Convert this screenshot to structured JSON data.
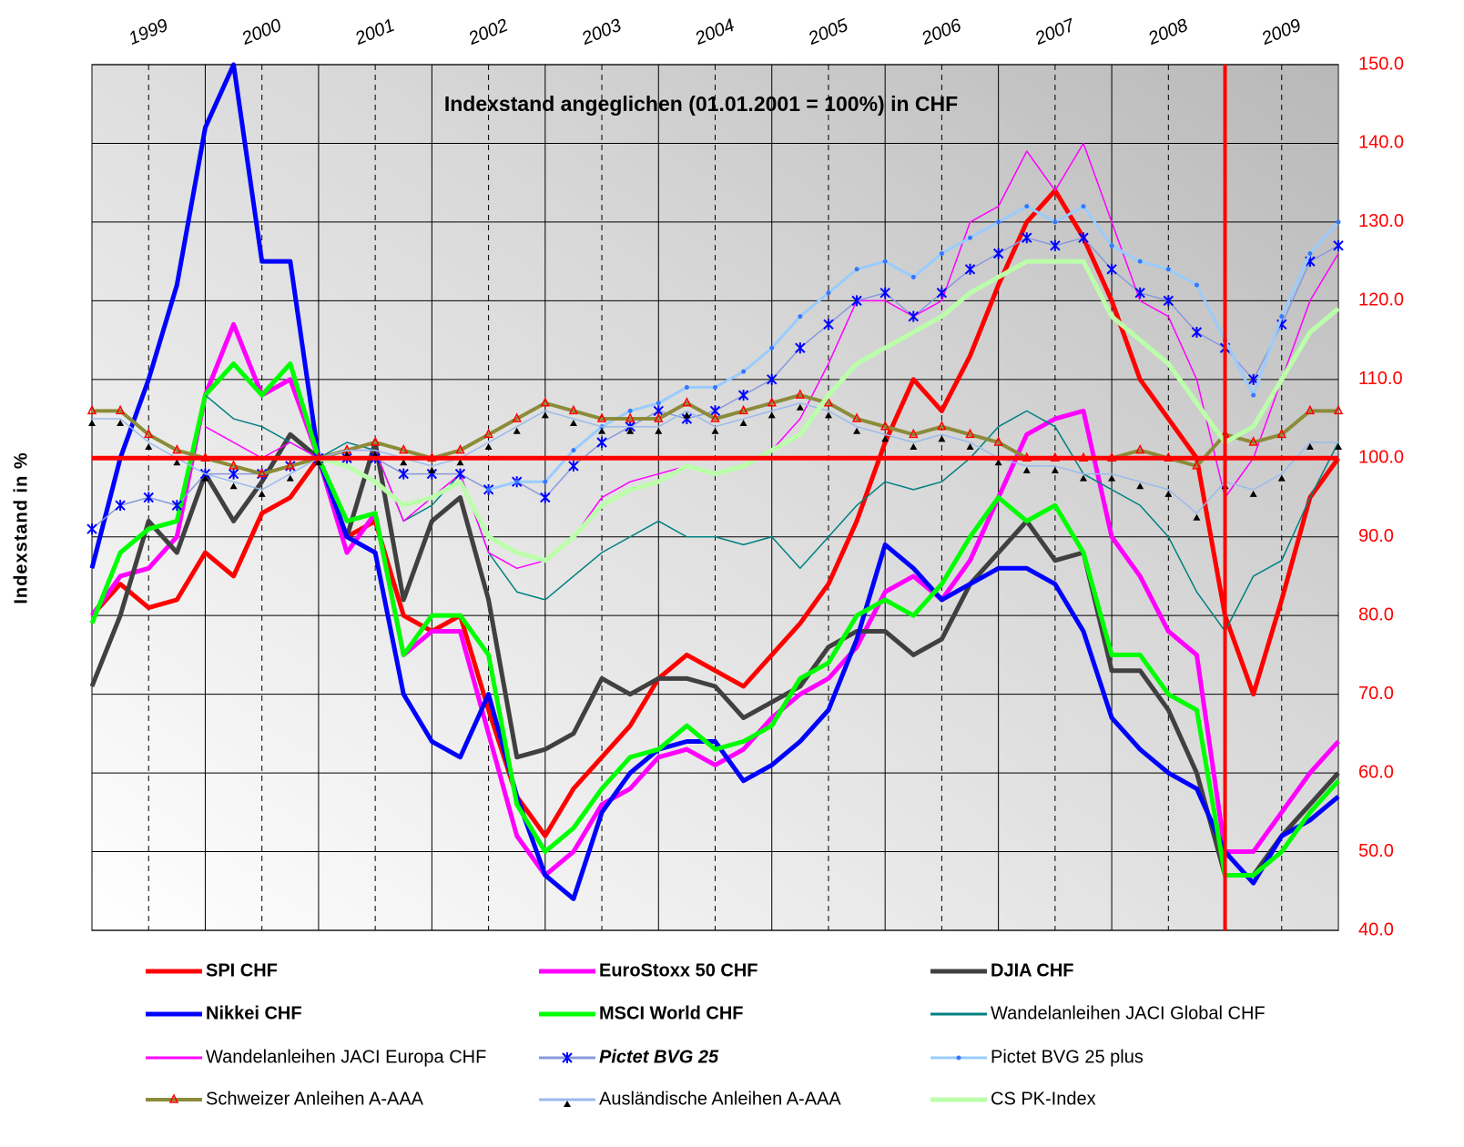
{
  "chart_data": {
    "type": "line",
    "title": "Indexstand angeglichen (01.01.2001 = 100%) in CHF",
    "y_label": "Indexstand in %",
    "x": [
      1999,
      1999.25,
      1999.5,
      1999.75,
      2000,
      2000.25,
      2000.5,
      2000.75,
      2001,
      2001.25,
      2001.5,
      2001.75,
      2002,
      2002.25,
      2002.5,
      2002.75,
      2003,
      2003.25,
      2003.5,
      2003.75,
      2004,
      2004.25,
      2004.5,
      2004.75,
      2005,
      2005.25,
      2005.5,
      2005.75,
      2006,
      2006.25,
      2006.5,
      2006.75,
      2007,
      2007.25,
      2007.5,
      2007.75,
      2008,
      2008.25,
      2008.5,
      2008.75,
      2009,
      2009.25,
      2009.5,
      2009.75,
      2010
    ],
    "xlim": [
      1999,
      2010
    ],
    "xticks": [
      {
        "value": 1999.5,
        "label": "1999"
      },
      {
        "value": 2000.5,
        "label": "2000"
      },
      {
        "value": 2001.5,
        "label": "2001"
      },
      {
        "value": 2002.5,
        "label": "2002"
      },
      {
        "value": 2003.5,
        "label": "2003"
      },
      {
        "value": 2004.5,
        "label": "2004"
      },
      {
        "value": 2005.5,
        "label": "2005"
      },
      {
        "value": 2006.5,
        "label": "2006"
      },
      {
        "value": 2007.5,
        "label": "2007"
      },
      {
        "value": 2008.5,
        "label": "2008"
      },
      {
        "value": 2009.5,
        "label": "2009"
      }
    ],
    "xgrid": [
      2000,
      2001,
      2002,
      2003,
      2004,
      2005,
      2006,
      2007,
      2008,
      2009
    ],
    "ylim": [
      40,
      150
    ],
    "yticks": [
      {
        "value": 40,
        "label": "40.0"
      },
      {
        "value": 50,
        "label": "50.0"
      },
      {
        "value": 60,
        "label": "60.0"
      },
      {
        "value": 70,
        "label": "70.0"
      },
      {
        "value": 80,
        "label": "80.0"
      },
      {
        "value": 90,
        "label": "90.0"
      },
      {
        "value": 100,
        "label": "100.0"
      },
      {
        "value": 110,
        "label": "110.0"
      },
      {
        "value": 120,
        "label": "120.0"
      },
      {
        "value": 130,
        "label": "130.0"
      },
      {
        "value": 140,
        "label": "140.0"
      },
      {
        "value": 150,
        "label": "150.0"
      }
    ],
    "grid": true,
    "hline": 100,
    "vline": 2009,
    "reference_color": "#ff0000",
    "series": [
      {
        "name": "SPI CHF",
        "color": "#ff0000",
        "width": 5,
        "bold": true,
        "values": [
          80,
          84,
          81,
          82,
          88,
          85,
          93,
          95,
          100,
          90,
          92,
          80,
          78,
          80,
          68,
          57,
          52,
          58,
          62,
          66,
          72,
          75,
          73,
          71,
          75,
          79,
          84,
          92,
          102,
          110,
          106,
          113,
          122,
          130,
          134,
          128,
          120,
          110,
          105,
          100,
          80,
          70,
          82,
          95,
          100
        ]
      },
      {
        "name": "EuroStoxx 50 CHF",
        "color": "#ff00ff",
        "width": 5,
        "bold": true,
        "values": [
          80,
          85,
          86,
          90,
          108,
          117,
          108,
          110,
          100,
          88,
          93,
          75,
          78,
          78,
          65,
          52,
          47,
          50,
          56,
          58,
          62,
          63,
          61,
          63,
          67,
          70,
          72,
          76,
          83,
          85,
          82,
          87,
          95,
          103,
          105,
          106,
          90,
          85,
          78,
          75,
          50,
          50,
          55,
          60,
          64
        ]
      },
      {
        "name": "DJIA CHF",
        "color": "#404040",
        "width": 5,
        "bold": true,
        "values": [
          71,
          80,
          92,
          88,
          98,
          92,
          97,
          103,
          100,
          90,
          102,
          82,
          92,
          95,
          82,
          62,
          63,
          65,
          72,
          70,
          72,
          72,
          71,
          67,
          69,
          71,
          76,
          78,
          78,
          75,
          77,
          84,
          88,
          92,
          87,
          88,
          73,
          73,
          68,
          60,
          47,
          47,
          52,
          56,
          60
        ]
      },
      {
        "name": "Nikkei CHF",
        "color": "#0000ff",
        "width": 5,
        "bold": true,
        "values": [
          86,
          100,
          110,
          122,
          142,
          150,
          125,
          125,
          100,
          90,
          88,
          70,
          64,
          62,
          70,
          57,
          47,
          44,
          55,
          60,
          63,
          64,
          64,
          59,
          61,
          64,
          68,
          77,
          89,
          86,
          82,
          84,
          86,
          86,
          84,
          78,
          67,
          63,
          60,
          58,
          50,
          46,
          52,
          54,
          57
        ]
      },
      {
        "name": "MSCI World CHF",
        "color": "#00ff00",
        "width": 5,
        "bold": true,
        "values": [
          79,
          88,
          91,
          92,
          108,
          112,
          108,
          112,
          100,
          92,
          93,
          75,
          80,
          80,
          75,
          56,
          50,
          53,
          58,
          62,
          63,
          66,
          63,
          64,
          66,
          72,
          74,
          80,
          82,
          80,
          84,
          90,
          95,
          92,
          94,
          88,
          75,
          75,
          70,
          68,
          47,
          47,
          50,
          55,
          59
        ]
      },
      {
        "name": "Wandelanleihen JACI Global CHF",
        "color": "#008080",
        "width": 1.5,
        "values": [
          null,
          null,
          null,
          null,
          108,
          105,
          104,
          102,
          100,
          102,
          101,
          92,
          94,
          98,
          88,
          83,
          82,
          85,
          88,
          90,
          92,
          90,
          90,
          89,
          90,
          86,
          90,
          94,
          97,
          96,
          97,
          100,
          104,
          106,
          104,
          98,
          96,
          94,
          90,
          83,
          78,
          85,
          87,
          95,
          102
        ]
      },
      {
        "name": "Wandelanleihen JACI  Europa CHF",
        "color": "#ff00ff",
        "width": 1.5,
        "values": [
          null,
          null,
          null,
          null,
          104,
          102,
          100,
          102,
          100,
          101,
          101,
          92,
          95,
          98,
          88,
          86,
          87,
          90,
          95,
          97,
          98,
          99,
          98,
          99,
          101,
          105,
          112,
          120,
          120,
          118,
          120,
          130,
          132,
          139,
          134,
          140,
          130,
          120,
          118,
          110,
          95,
          100,
          110,
          120,
          126
        ]
      },
      {
        "name": "Pictet BVG 25",
        "color": "#8899dd",
        "marker": "x",
        "marker_color": "#0000ff",
        "width": 1.5,
        "bold": true,
        "italic": true,
        "values": [
          91,
          94,
          95,
          94,
          98,
          98,
          98,
          99,
          100,
          100,
          100,
          98,
          98,
          98,
          96,
          97,
          95,
          99,
          102,
          104,
          106,
          105,
          106,
          108,
          110,
          114,
          117,
          120,
          121,
          118,
          121,
          124,
          126,
          128,
          127,
          128,
          124,
          121,
          120,
          116,
          114,
          110,
          117,
          125,
          127
        ]
      },
      {
        "name": "Pictet BVG 25 plus",
        "color": "#99ccff",
        "marker": "dot",
        "marker_color": "#3377ff",
        "width": 3,
        "values": [
          null,
          null,
          null,
          null,
          null,
          null,
          null,
          null,
          null,
          null,
          null,
          null,
          null,
          null,
          96,
          97,
          97,
          101,
          104,
          106,
          107,
          109,
          109,
          111,
          114,
          118,
          121,
          124,
          125,
          123,
          126,
          128,
          130,
          132,
          130,
          132,
          127,
          125,
          124,
          122,
          115,
          108,
          118,
          126,
          130
        ]
      },
      {
        "name": "Schweizer Anleihen A-AAA",
        "color": "#8b8b3a",
        "marker": "triangle",
        "marker_color": "#ff0000",
        "width": 4,
        "values": [
          106,
          106,
          103,
          101,
          100,
          99,
          98,
          99,
          100,
          101,
          102,
          101,
          100,
          101,
          103,
          105,
          107,
          106,
          105,
          105,
          105,
          107,
          105,
          106,
          107,
          108,
          107,
          105,
          104,
          103,
          104,
          103,
          102,
          100,
          100,
          100,
          100,
          101,
          100,
          99,
          103,
          102,
          103,
          106,
          106
        ]
      },
      {
        "name": "Ausländische Anleihen A-AAA",
        "color": "#99bbee",
        "marker": "tri-dark",
        "marker_color": "#000000",
        "width": 1.5,
        "values": [
          105,
          105,
          102,
          100,
          98,
          97,
          96,
          98,
          100,
          101,
          101,
          100,
          99,
          100,
          102,
          104,
          106,
          105,
          104,
          104,
          104,
          106,
          104,
          105,
          106,
          107,
          106,
          104,
          103,
          102,
          103,
          102,
          100,
          99,
          99,
          98,
          98,
          97,
          96,
          93,
          97,
          96,
          98,
          102,
          102
        ]
      },
      {
        "name": "CS PK-Index",
        "color": "#bbffaa",
        "width": 5,
        "values": [
          null,
          null,
          null,
          null,
          null,
          null,
          null,
          null,
          100,
          99,
          97,
          94,
          95,
          97,
          90,
          88,
          87,
          90,
          94,
          96,
          97,
          99,
          98,
          99,
          101,
          103,
          108,
          112,
          114,
          116,
          118,
          121,
          123,
          125,
          125,
          125,
          118,
          115,
          112,
          107,
          102,
          104,
          110,
          116,
          119
        ]
      }
    ]
  }
}
